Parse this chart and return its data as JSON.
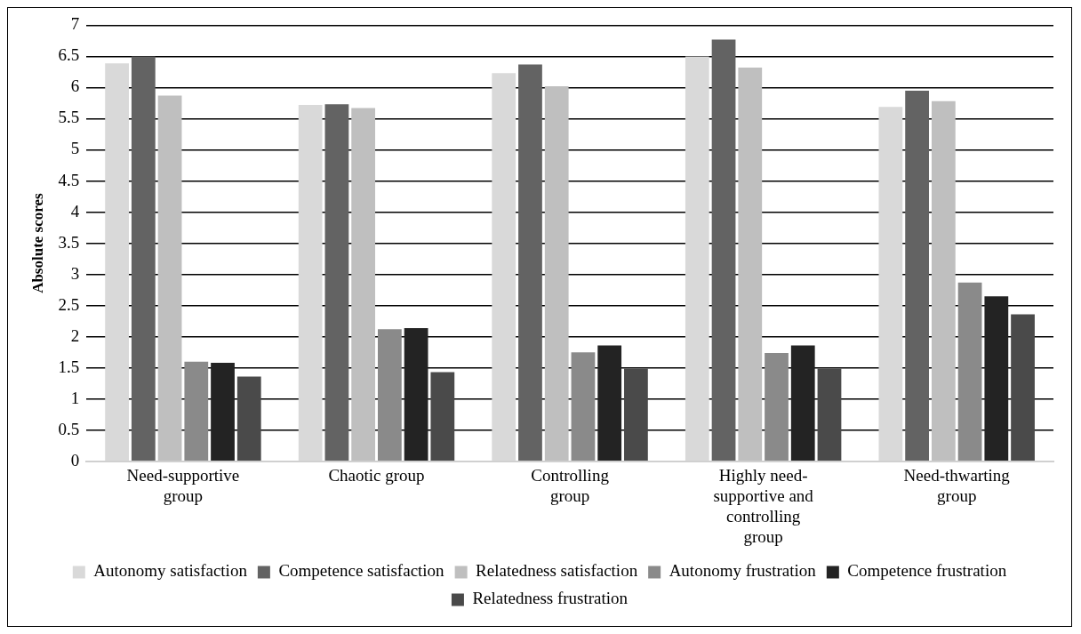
{
  "chart_data": {
    "type": "bar",
    "ylabel": "Absolute scores",
    "categories": [
      "Need-supportive group",
      "Chaotic group",
      "Controlling group",
      "Highly need-supportive and controlling group",
      "Need-thwarting group"
    ],
    "series": [
      {
        "name": "Autonomy satisfaction",
        "color": "#d9d9d9",
        "values": [
          6.39,
          5.72,
          6.23,
          6.5,
          5.69
        ]
      },
      {
        "name": "Competence satisfaction",
        "color": "#636363",
        "values": [
          6.5,
          5.73,
          6.37,
          6.77,
          5.95
        ]
      },
      {
        "name": "Relatedness satisfaction",
        "color": "#bfbfbf",
        "values": [
          5.87,
          5.67,
          6.02,
          6.32,
          5.78
        ]
      },
      {
        "name": "Autonomy frustration",
        "color": "#8a8a8a",
        "values": [
          1.6,
          2.12,
          1.75,
          1.74,
          2.87
        ]
      },
      {
        "name": "Competence frustration",
        "color": "#232323",
        "values": [
          1.58,
          2.14,
          1.86,
          1.86,
          2.65
        ]
      },
      {
        "name": "Relatedness frustration",
        "color": "#4a4a4a",
        "values": [
          1.36,
          1.43,
          1.49,
          1.49,
          2.36
        ]
      }
    ],
    "ylim": [
      0,
      7
    ],
    "yticks": [
      0,
      0.5,
      1,
      1.5,
      2,
      2.5,
      3,
      3.5,
      4,
      4.5,
      5,
      5.5,
      6,
      6.5,
      7
    ],
    "grid": "y",
    "legend": "bottom"
  }
}
